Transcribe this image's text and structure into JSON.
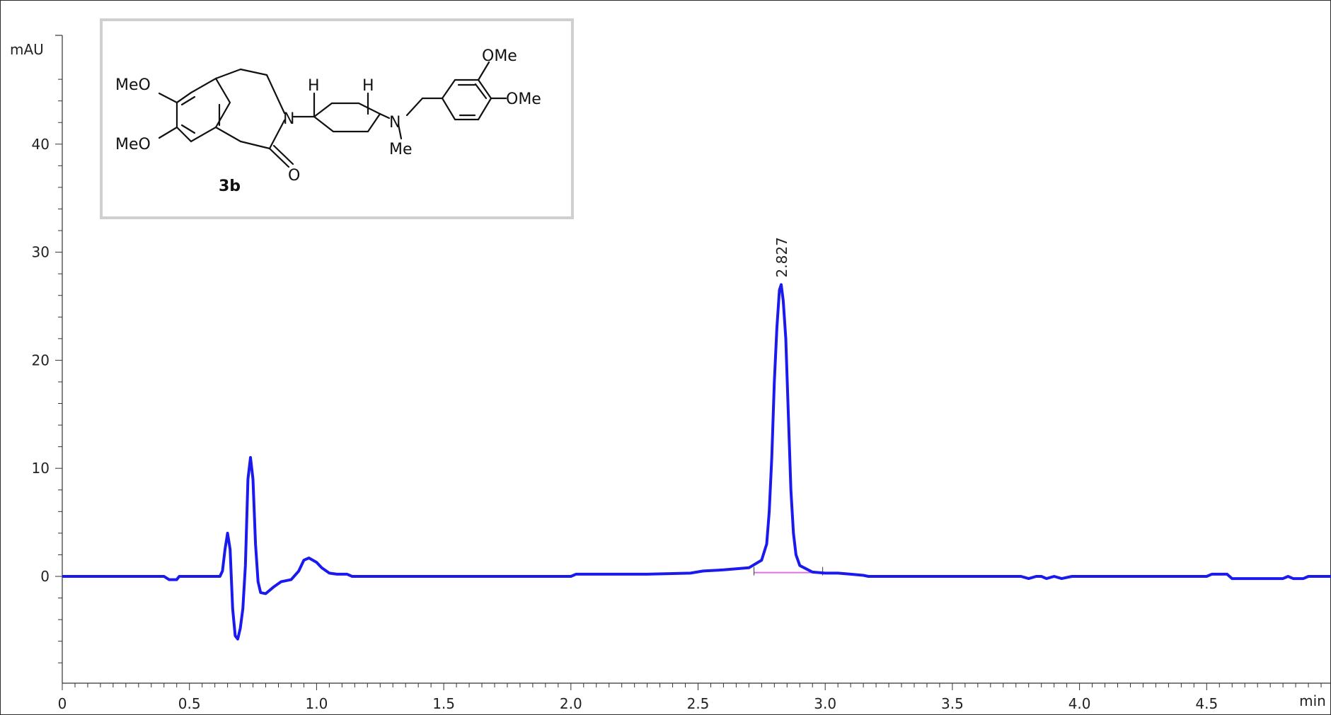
{
  "chart_data": {
    "type": "line",
    "ylabel": "mAU",
    "xlabel": "min",
    "xlim": [
      0,
      5.0
    ],
    "ylim": [
      -10,
      48
    ],
    "x_ticks": [
      "0",
      "0.5",
      "1.0",
      "1.5",
      "2.0",
      "2.5",
      "3.0",
      "3.5",
      "4.0",
      "4.5"
    ],
    "y_ticks": [
      "0",
      "10",
      "20",
      "30",
      "40"
    ],
    "series": [
      {
        "color": "#1a1aee",
        "points": [
          [
            0.0,
            0.0
          ],
          [
            0.4,
            0.0
          ],
          [
            0.42,
            -0.3
          ],
          [
            0.45,
            -0.3
          ],
          [
            0.46,
            0.0
          ],
          [
            0.62,
            0.0
          ],
          [
            0.63,
            0.5
          ],
          [
            0.64,
            2.5
          ],
          [
            0.65,
            4.0
          ],
          [
            0.66,
            2.5
          ],
          [
            0.67,
            -3.0
          ],
          [
            0.68,
            -5.5
          ],
          [
            0.69,
            -5.8
          ],
          [
            0.7,
            -4.8
          ],
          [
            0.71,
            -3.0
          ],
          [
            0.72,
            1.0
          ],
          [
            0.73,
            9.0
          ],
          [
            0.74,
            11.0
          ],
          [
            0.75,
            9.0
          ],
          [
            0.76,
            3.0
          ],
          [
            0.77,
            -0.5
          ],
          [
            0.78,
            -1.5
          ],
          [
            0.8,
            -1.6
          ],
          [
            0.83,
            -1.0
          ],
          [
            0.86,
            -0.5
          ],
          [
            0.9,
            -0.3
          ],
          [
            0.93,
            0.5
          ],
          [
            0.95,
            1.5
          ],
          [
            0.97,
            1.7
          ],
          [
            1.0,
            1.3
          ],
          [
            1.02,
            0.8
          ],
          [
            1.05,
            0.3
          ],
          [
            1.08,
            0.2
          ],
          [
            1.12,
            0.2
          ],
          [
            1.14,
            0.0
          ],
          [
            2.0,
            0.0
          ],
          [
            2.02,
            0.2
          ],
          [
            2.3,
            0.2
          ],
          [
            2.47,
            0.3
          ],
          [
            2.52,
            0.5
          ],
          [
            2.6,
            0.6
          ],
          [
            2.65,
            0.7
          ],
          [
            2.7,
            0.8
          ],
          [
            2.75,
            1.5
          ],
          [
            2.77,
            3.0
          ],
          [
            2.78,
            6.0
          ],
          [
            2.79,
            11.0
          ],
          [
            2.8,
            18.0
          ],
          [
            2.81,
            23.0
          ],
          [
            2.82,
            26.5
          ],
          [
            2.827,
            27.0
          ],
          [
            2.835,
            25.5
          ],
          [
            2.845,
            22.0
          ],
          [
            2.855,
            15.0
          ],
          [
            2.865,
            8.0
          ],
          [
            2.875,
            4.0
          ],
          [
            2.885,
            2.0
          ],
          [
            2.9,
            1.0
          ],
          [
            2.95,
            0.4
          ],
          [
            3.0,
            0.3
          ],
          [
            3.05,
            0.3
          ],
          [
            3.1,
            0.2
          ],
          [
            3.15,
            0.1
          ],
          [
            3.17,
            0.0
          ],
          [
            3.77,
            0.0
          ],
          [
            3.8,
            -0.2
          ],
          [
            3.83,
            0.0
          ],
          [
            3.85,
            0.0
          ],
          [
            3.87,
            -0.2
          ],
          [
            3.9,
            0.0
          ],
          [
            3.93,
            -0.2
          ],
          [
            3.97,
            0.0
          ],
          [
            4.5,
            0.0
          ],
          [
            4.52,
            0.2
          ],
          [
            4.58,
            0.2
          ],
          [
            4.6,
            -0.2
          ],
          [
            4.8,
            -0.2
          ],
          [
            4.82,
            0.0
          ],
          [
            4.84,
            -0.2
          ],
          [
            4.88,
            -0.2
          ],
          [
            4.9,
            0.0
          ],
          [
            5.0,
            0.0
          ]
        ]
      }
    ],
    "baseline": {
      "color": "#e070e0",
      "x": [
        2.72,
        2.99
      ],
      "y": [
        0.35,
        0.35
      ]
    },
    "annotations": [
      {
        "text": "2.827",
        "x": 2.827,
        "y": 27.0
      }
    ]
  },
  "inset": {
    "compound_label": "3b",
    "atoms": {
      "meo_top": "MeO",
      "meo_bottom": "MeO",
      "n_lactam": "N",
      "o_carbonyl": "O",
      "h_left": "H",
      "h_right": "H",
      "n_amine": "N",
      "me_amine": "Me",
      "ome_top": "OMe",
      "ome_right": "OMe"
    }
  }
}
